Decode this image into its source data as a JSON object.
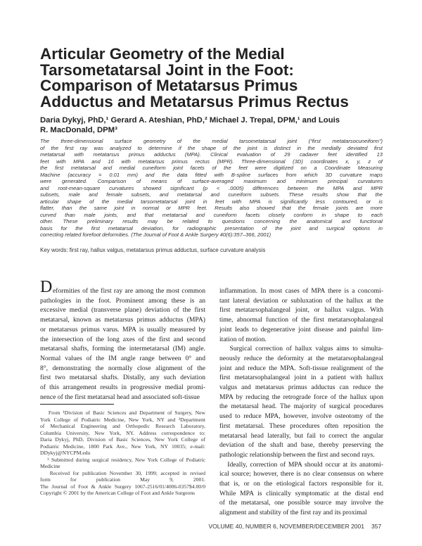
{
  "title": [
    "Articular Geometry of the Medial",
    "Tarsometatarsal Joint in the Foot:",
    "Comparison of Metatarsus Primus",
    "Adductus and Metatarsus Primus Rectus"
  ],
  "authors": [
    "Daria Dykyj, PhD,¹ Gerard A. Ateshian, PhD,² Michael J. Trepal, DPM,¹ and Louis",
    "R. MacDonald, DPM³"
  ],
  "abstract": [
    "The three-dimensional surface geometry of the medial tarsometatarsal joint (“first metatarsocuneiform”)",
    "of the first ray was analyzed to determine if the shape of the joint is distinct in the medially deviated first",
    "metatarsal with metatarsus primus adductus (MPA). Clinical evaluation of 29 cadaver feet identified 13",
    "feet with MPA and 16 with metatarsus primus rectus (MPR). Three-dimensional (3D) coordinates x, y, z of",
    "the first metatarsal and medial cuneiform joint facets of the feet were digitized on a Coordinate Measuring",
    "Machine (accuracy = 0.01 mm) and the data fitted with B-spline surfaces from which 3D curvature maps",
    "were generated. Comparison of means of surface-averaged maximum and minimum principal curvatures",
    "and root-mean-square curvatures showed significant (p < .0005) differences between the MPA and MPR",
    "subsets, male and female subsets, and metatarsal and cuneiform subsets. These results show that the",
    "articular shape of the medial tarsometatarsal joint in feet with MPA is significantly less contoured, or is",
    "flatter, than the same joint in normal or MPR feet. Results also showed that the female joints are more",
    "curved than male joints, and that metatarsal and cuneiform facets closely conform in shape to each",
    "other. These preliminary results may be related to questions concerning the anatomical and functional",
    "basis for the first metatarsal deviation, for radiographic presentation of the joint and surgical options in",
    "correcting related forefoot deformities. (The Journal of Foot & Ankle Surgery 40(6):357–366, 2001)"
  ],
  "keywords": "Key words: first ray, hallux valgus, metatarsus primus adductus, surface curvature analysis",
  "body_left": {
    "dropcap": "D",
    "lines": [
      "eformities of the first ray are among the most common",
      "pathologies in the foot. Prominent among these is an",
      "excessive medial (transverse plane) deviation of the first",
      "metatarsal, known as metatarsus primus adductus (MPA)",
      "or metatarsus primus varus. MPA is usually measured by",
      "the intersection of the long axes of the first and second",
      "metatarsal shafts, forming the intermetatarsal (IM) angle.",
      "Normal values of the IM angle range between 0° and",
      "8°, demonstrating the normally close alignment of the",
      "first two metatarsal shafts. Distally, any such deviation",
      "of this arrangement results in progressive medial promi-",
      "nence of the first metatarsal head and associated soft-tissue"
    ]
  },
  "body_right": {
    "lines": [
      "inflammation. In most cases of MPA there is a concomi-",
      "tant lateral deviation or subluxation of the hallux at the",
      "first metatarsophalangeal joint, or hallux valgus. With",
      "time, abnormal function of the first metatarsophalangeal",
      "joint leads to degenerative joint disease and painful lim-",
      "itation of motion.",
      "   Surgical correction of hallux valgus aims to simulta-",
      "neously reduce the deformity at the metatarsophalangeal",
      "joint and reduce the MPA. Soft-tissue realignment of the",
      "first metatarsophalangeal joint in a patient with hallux",
      "valgus and metatarsus primus adductus can reduce the",
      "MPA by reducing the retrograde force of the hallux upon",
      "the metatarsal head. The majority of surgical procedures",
      "used to reduce MPA, however, involve osteotomy of the",
      "first metatarsal. These procedures often reposition the",
      "metatarsal head laterally, but fail to correct the angular",
      "deviation of the shaft and base, thereby preserving the",
      "pathologic relationship between the first and second rays.",
      "   Ideally, correction of MPA should occur at its anatomi-",
      "ical source; however, there is no clear consensus on where",
      "that is, or on the etiological factors responsible for it.",
      "While MPA is clinically symptomatic at the distal end",
      "of the metatarsal, one possible source may involve the",
      "alignment and stability of the first ray and its proximal"
    ]
  },
  "footnotes": [
    "   From ¹Division of Basic Sciences and Department of Surgery, New",
    "York College of Podiatric Medicine, New York, NY and ²Department",
    "of Mechanical Engineering and Orthopedic Research Laboratory,",
    "Columbia University, New York, NY. Address correspondence to:",
    "Daria Dykyj, PhD, Division of Basic Sciences, New York College of",
    "Podiatric Medicine, 1800 Park Ave., New York, NY 10035; e-mail:",
    "DDykyj@NYCPM.edu",
    "   ³ Submitted during surgical residency, New York College of Podiatric",
    "Medicine",
    "   Received for publication November 30, 1999; accepted in revised",
    "form for publication May 9, 2001.",
    "The Journal of Foot & Ankle Surgery 1067-2516/01/4006-0357$4.00/0",
    "Copyright © 2001 by the American College of Foot and Ankle Surgeons"
  ],
  "footer": {
    "issue": "VOLUME 40, NUMBER 6, NOVEMBER/DECEMBER 2001",
    "page": "357"
  }
}
